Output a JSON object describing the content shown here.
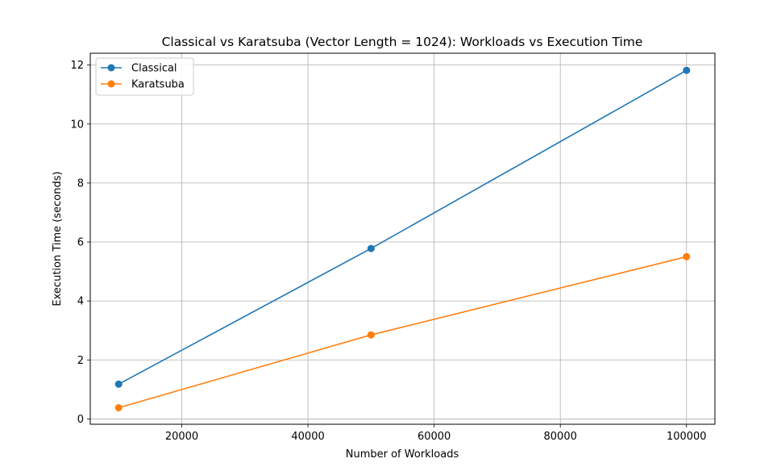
{
  "chart_data": {
    "type": "line",
    "title": "Classical vs Karatsuba (Vector Length = 1024): Workloads vs Execution Time",
    "xlabel": "Number of Workloads",
    "ylabel": "Execution Time (seconds)",
    "x": [
      10000,
      50000,
      100000
    ],
    "series": [
      {
        "name": "Classical",
        "values": [
          1.18,
          5.78,
          11.82
        ],
        "color": "#1f77b4"
      },
      {
        "name": "Karatsuba",
        "values": [
          0.38,
          2.85,
          5.5
        ],
        "color": "#ff7f0e"
      }
    ],
    "xlim": [
      5500,
      104500
    ],
    "ylim": [
      -0.18,
      12.4
    ],
    "xticks": [
      20000,
      40000,
      60000,
      80000,
      100000
    ],
    "yticks": [
      0,
      2,
      4,
      6,
      8,
      10,
      12
    ],
    "grid": true,
    "legend": "top-left"
  }
}
